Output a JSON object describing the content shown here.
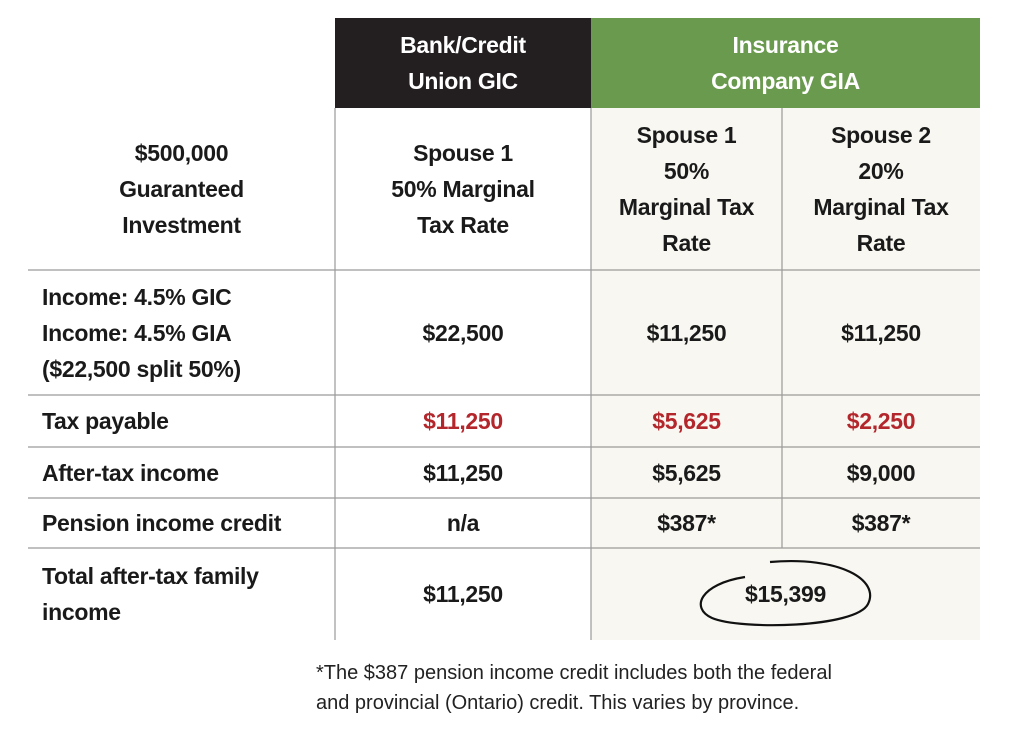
{
  "table": {
    "group_headers": [
      [
        "Bank/Credit",
        "Union GIC"
      ],
      [
        "Insurance",
        "Company GIA"
      ]
    ],
    "corner": [
      "$500,000",
      "Guaranteed",
      "Investment"
    ],
    "columns": [
      [
        "Spouse 1",
        "50% Marginal",
        "Tax Rate"
      ],
      [
        "Spouse 1",
        "50%",
        "Marginal Tax",
        "Rate"
      ],
      [
        "Spouse 2",
        "20%",
        "Marginal Tax",
        "Rate"
      ]
    ],
    "rows": [
      {
        "label": [
          "Income: 4.5% GIC",
          "Income: 4.5% GIA",
          "($22,500 split 50%)"
        ],
        "cells": [
          "$22,500",
          "$11,250",
          "$11,250"
        ]
      },
      {
        "label": [
          "Tax payable"
        ],
        "cells": [
          "$11,250",
          "$5,625",
          "$2,250"
        ]
      },
      {
        "label": [
          "After-tax income"
        ],
        "cells": [
          "$11,250",
          "$5,625",
          "$9,000"
        ]
      },
      {
        "label": [
          "Pension income credit"
        ],
        "cells": [
          "n/a",
          "$387*",
          "$387*"
        ]
      },
      {
        "label": [
          "Total after-tax family",
          "income"
        ],
        "cells": [
          "$11,250",
          "$15,399"
        ]
      }
    ]
  },
  "footnote": [
    "*The $387 pension income credit includes both the federal",
    "and provincial (Ontario) credit. This varies by province."
  ]
}
